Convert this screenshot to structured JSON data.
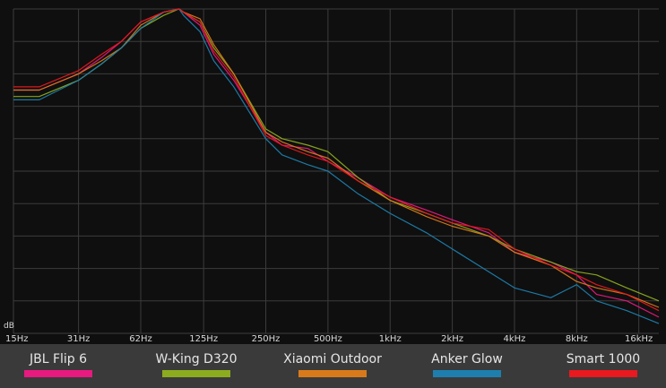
{
  "chart_data": {
    "type": "line",
    "x_scale": "log",
    "x_ticks": [
      "15Hz",
      "31Hz",
      "62Hz",
      "125Hz",
      "250Hz",
      "500Hz",
      "1kHz",
      "2kHz",
      "4kHz",
      "8kHz",
      "16kHz"
    ],
    "x_tick_values": [
      15,
      31,
      62,
      125,
      250,
      500,
      1000,
      2000,
      4000,
      8000,
      16000
    ],
    "y_unit_label": "dB",
    "y_scale_note": "relative level, top = peak",
    "grid": true,
    "legend_position": "bottom",
    "x": [
      15,
      20,
      31,
      40,
      50,
      62,
      80,
      95,
      100,
      120,
      140,
      175,
      250,
      300,
      400,
      500,
      700,
      1000,
      1500,
      2000,
      3000,
      4000,
      6000,
      8000,
      10000,
      14000,
      20000
    ],
    "series": [
      {
        "name": "JBL Flip 6",
        "color": "#e8197f",
        "values": [
          0.75,
          0.75,
          0.8,
          0.85,
          0.9,
          0.96,
          0.99,
          1.0,
          0.99,
          0.95,
          0.86,
          0.78,
          0.62,
          0.58,
          0.57,
          0.53,
          0.48,
          0.42,
          0.38,
          0.35,
          0.31,
          0.25,
          0.22,
          0.18,
          0.12,
          0.1,
          0.05
        ]
      },
      {
        "name": "W-King D320",
        "color": "#8cab1f",
        "values": [
          0.73,
          0.73,
          0.78,
          0.83,
          0.88,
          0.94,
          0.98,
          1.0,
          0.99,
          0.96,
          0.88,
          0.8,
          0.63,
          0.6,
          0.58,
          0.56,
          0.48,
          0.41,
          0.37,
          0.34,
          0.3,
          0.26,
          0.22,
          0.19,
          0.18,
          0.14,
          0.1
        ]
      },
      {
        "name": "Xiaomi Outdoor",
        "color": "#d97a1a",
        "values": [
          0.75,
          0.75,
          0.8,
          0.84,
          0.88,
          0.95,
          0.99,
          1.0,
          0.99,
          0.97,
          0.89,
          0.8,
          0.62,
          0.59,
          0.56,
          0.54,
          0.47,
          0.41,
          0.36,
          0.33,
          0.3,
          0.25,
          0.21,
          0.16,
          0.14,
          0.12,
          0.08
        ]
      },
      {
        "name": "Anker Glow",
        "color": "#1e7fae",
        "values": [
          0.72,
          0.72,
          0.78,
          0.83,
          0.88,
          0.94,
          0.99,
          1.0,
          0.98,
          0.93,
          0.84,
          0.76,
          0.6,
          0.55,
          0.52,
          0.5,
          0.43,
          0.37,
          0.31,
          0.26,
          0.19,
          0.14,
          0.11,
          0.15,
          0.1,
          0.07,
          0.03
        ]
      },
      {
        "name": "Smart 1000",
        "color": "#e8191f",
        "values": [
          0.76,
          0.76,
          0.81,
          0.86,
          0.9,
          0.96,
          0.99,
          1.0,
          0.99,
          0.96,
          0.87,
          0.79,
          0.61,
          0.58,
          0.55,
          0.53,
          0.47,
          0.42,
          0.37,
          0.34,
          0.32,
          0.26,
          0.21,
          0.18,
          0.15,
          0.12,
          0.07
        ]
      }
    ]
  }
}
